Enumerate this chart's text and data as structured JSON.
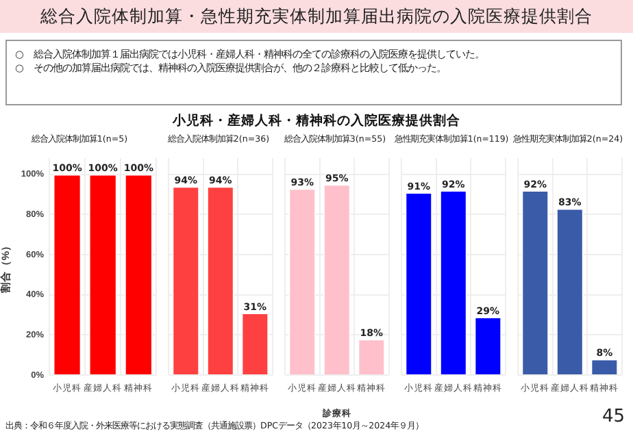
{
  "chart_data": [
    {
      "type": "other",
      "title": "総合入院体制加算・急性期充実体制加算届出病院の入院医療提供割合",
      "annotations": [
        "○　総合入院体制加算１届出病院では小児科・産婦人科・精神科の全ての診療科の入院医療を提供していた。",
        "○　その他の加算届出病院では、精神科の入院医療提供割合が、他の２診療科と比較して低かった。",
        "小児科・産婦人科・精神科の入院医療提供割合",
        "出典：令和６年度入院・外来医療等における実態調査（共通施設票）DPCデータ（2023年10月～2024年９月）",
        "45"
      ]
    },
    {
      "type": "bar",
      "title": "総合入院体制加算1(n=5)",
      "ylabel": "割合（%）",
      "categories": [
        "小児科",
        "産婦人科",
        "精神科"
      ],
      "values": [
        100,
        100,
        100
      ],
      "value_labels": [
        "100%",
        "100%",
        "100%"
      ],
      "color": "#ff0000",
      "ylim": [
        0,
        108
      ],
      "yticks": [
        {
          "value": 0,
          "label": "0%"
        },
        {
          "value": 20,
          "label": "20%"
        },
        {
          "value": 40,
          "label": "40%"
        },
        {
          "value": 60,
          "label": "60%"
        },
        {
          "value": 80,
          "label": "80%"
        },
        {
          "value": 100,
          "label": "100%"
        }
      ],
      "grid": true
    },
    {
      "type": "bar",
      "title": "総合入院体制加算2(n=36)",
      "categories": [
        "小児科",
        "産婦人科",
        "精神科"
      ],
      "values": [
        94,
        94,
        31
      ],
      "value_labels": [
        "94%",
        "94%",
        "31%"
      ],
      "color": "#ff4040",
      "ylim": [
        0,
        108
      ],
      "yticks": [
        0,
        20,
        40,
        60,
        80,
        100
      ],
      "grid": true,
      "tick_labels": "x"
    },
    {
      "type": "bar",
      "title": "総合入院体制加算3(n=55)",
      "xlabel": "診療科",
      "categories": [
        "小児科",
        "産婦人科",
        "精神科"
      ],
      "values": [
        93,
        95,
        18
      ],
      "value_labels": [
        "93%",
        "95%",
        "18%"
      ],
      "color": "#ffc0cb",
      "ylim": [
        0,
        108
      ],
      "yticks": [
        0,
        20,
        40,
        60,
        80,
        100
      ],
      "grid": true,
      "tick_labels": "x"
    },
    {
      "type": "bar",
      "title": "急性期充実体制加算1(n=119)",
      "categories": [
        "小児科",
        "産婦人科",
        "精神科"
      ],
      "values": [
        91,
        92,
        29
      ],
      "value_labels": [
        "91%",
        "92%",
        "29%"
      ],
      "color": "#0000ff",
      "ylim": [
        0,
        108
      ],
      "yticks": [
        0,
        20,
        40,
        60,
        80,
        100
      ],
      "grid": true,
      "tick_labels": "x"
    },
    {
      "type": "bar",
      "title": "急性期充実体制加算2(n=24)",
      "categories": [
        "小児科",
        "産婦人科",
        "精神科"
      ],
      "values": [
        92,
        83,
        8
      ],
      "value_labels": [
        "92%",
        "83%",
        "8%"
      ],
      "color": "#3a5ba8",
      "ylim": [
        0,
        108
      ],
      "yticks": [
        0,
        20,
        40,
        60,
        80,
        100
      ],
      "grid": true,
      "tick_labels": "x"
    }
  ]
}
